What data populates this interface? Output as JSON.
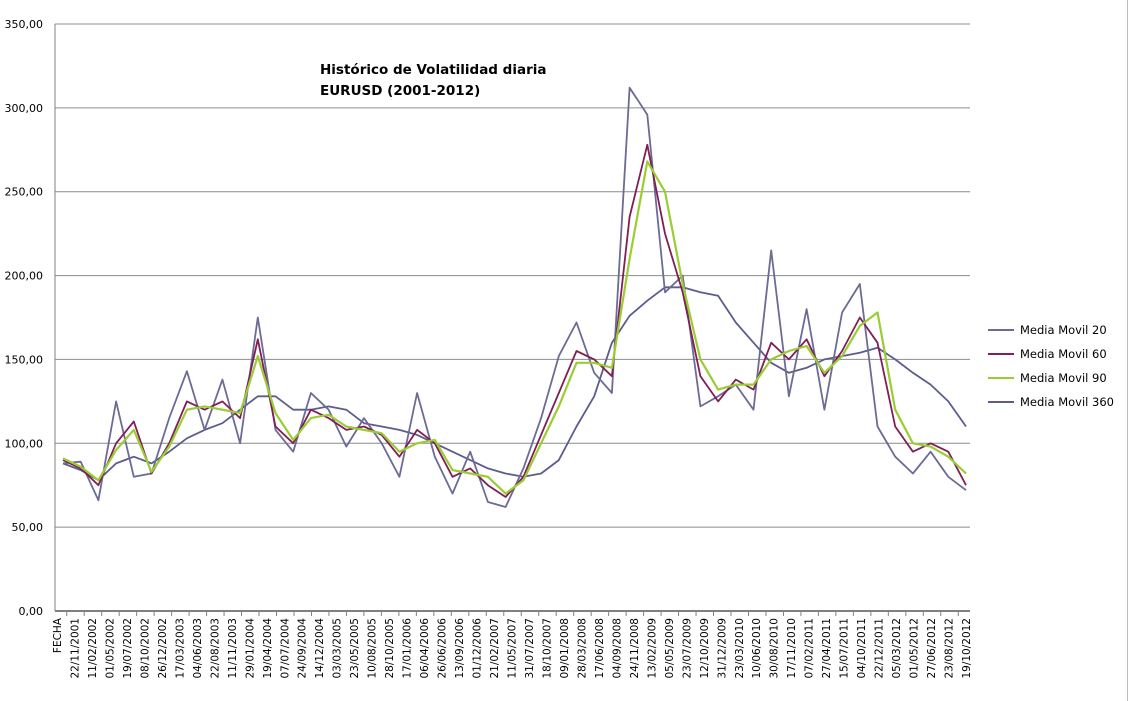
{
  "chart_data": {
    "type": "line",
    "title": "Histórico de Volatilidad diaria",
    "subtitle": "EURUSD (2001-2012)",
    "ylim": [
      0,
      350
    ],
    "yticks": [
      "0,00",
      "50,00",
      "100,00",
      "150,00",
      "200,00",
      "250,00",
      "300,00",
      "350,00"
    ],
    "ytick_values": [
      0,
      50,
      100,
      150,
      200,
      250,
      300,
      350
    ],
    "grid": true,
    "legend_position": "right",
    "x_first_label": "FECHA",
    "x": [
      "22/11/2001",
      "11/02/2002",
      "01/05/2002",
      "19/07/2002",
      "08/10/2002",
      "26/12/2002",
      "17/03/2003",
      "04/06/2003",
      "22/08/2003",
      "11/11/2003",
      "29/01/2004",
      "19/04/2004",
      "07/07/2004",
      "24/09/2004",
      "14/12/2004",
      "03/03/2005",
      "23/05/2005",
      "10/08/2005",
      "28/10/2005",
      "17/01/2006",
      "06/04/2006",
      "26/06/2006",
      "13/09/2006",
      "01/12/2006",
      "21/02/2007",
      "11/05/2007",
      "31/07/2007",
      "18/10/2007",
      "09/01/2008",
      "28/03/2008",
      "17/06/2008",
      "04/09/2008",
      "24/11/2008",
      "13/02/2009",
      "05/05/2009",
      "23/07/2009",
      "12/10/2009",
      "31/12/2009",
      "23/03/2010",
      "10/06/2010",
      "30/08/2010",
      "17/11/2010",
      "07/02/2011",
      "27/04/2011",
      "15/07/2011",
      "04/10/2011",
      "22/12/2011",
      "05/03/2012",
      "01/05/2012",
      "27/06/2012",
      "23/08/2012",
      "19/10/2012"
    ],
    "series": [
      {
        "name": "Media Movil 20",
        "color": "#6b6b96",
        "values": [
          88,
          89,
          66,
          125,
          80,
          82,
          115,
          143,
          108,
          138,
          100,
          175,
          108,
          95,
          130,
          120,
          98,
          115,
          100,
          80,
          130,
          92,
          70,
          95,
          65,
          62,
          85,
          115,
          152,
          172,
          142,
          130,
          312,
          296,
          190,
          200,
          122,
          128,
          135,
          120,
          215,
          128,
          180,
          120,
          178,
          195,
          110,
          92,
          82,
          95,
          80,
          72
        ]
      },
      {
        "name": "Media Movil 60",
        "color": "#7f1f56",
        "values": [
          90,
          85,
          75,
          100,
          113,
          82,
          100,
          125,
          120,
          125,
          115,
          162,
          110,
          100,
          120,
          115,
          108,
          110,
          105,
          92,
          108,
          100,
          80,
          85,
          75,
          68,
          80,
          105,
          130,
          155,
          150,
          140,
          235,
          278,
          225,
          190,
          140,
          125,
          138,
          132,
          160,
          150,
          162,
          140,
          155,
          175,
          160,
          110,
          95,
          100,
          95,
          75
        ]
      },
      {
        "name": "Media Movil 90",
        "color": "#9acd32",
        "values": [
          91,
          86,
          78,
          96,
          108,
          83,
          98,
          120,
          122,
          120,
          118,
          152,
          118,
          102,
          115,
          117,
          110,
          108,
          106,
          95,
          100,
          102,
          84,
          82,
          80,
          70,
          78,
          100,
          122,
          148,
          148,
          145,
          210,
          268,
          250,
          195,
          150,
          132,
          135,
          135,
          150,
          155,
          158,
          142,
          152,
          170,
          178,
          120,
          100,
          98,
          92,
          82
        ]
      },
      {
        "name": "Media Movil 360",
        "color": "#5c5c8f",
        "values": [
          88,
          84,
          78,
          88,
          92,
          88,
          95,
          103,
          108,
          112,
          120,
          128,
          128,
          120,
          120,
          122,
          120,
          112,
          110,
          108,
          105,
          100,
          95,
          90,
          85,
          82,
          80,
          82,
          90,
          110,
          128,
          160,
          176,
          185,
          193,
          193,
          190,
          188,
          172,
          160,
          148,
          142,
          145,
          150,
          152,
          154,
          157,
          150,
          142,
          135,
          125,
          110
        ]
      }
    ]
  }
}
